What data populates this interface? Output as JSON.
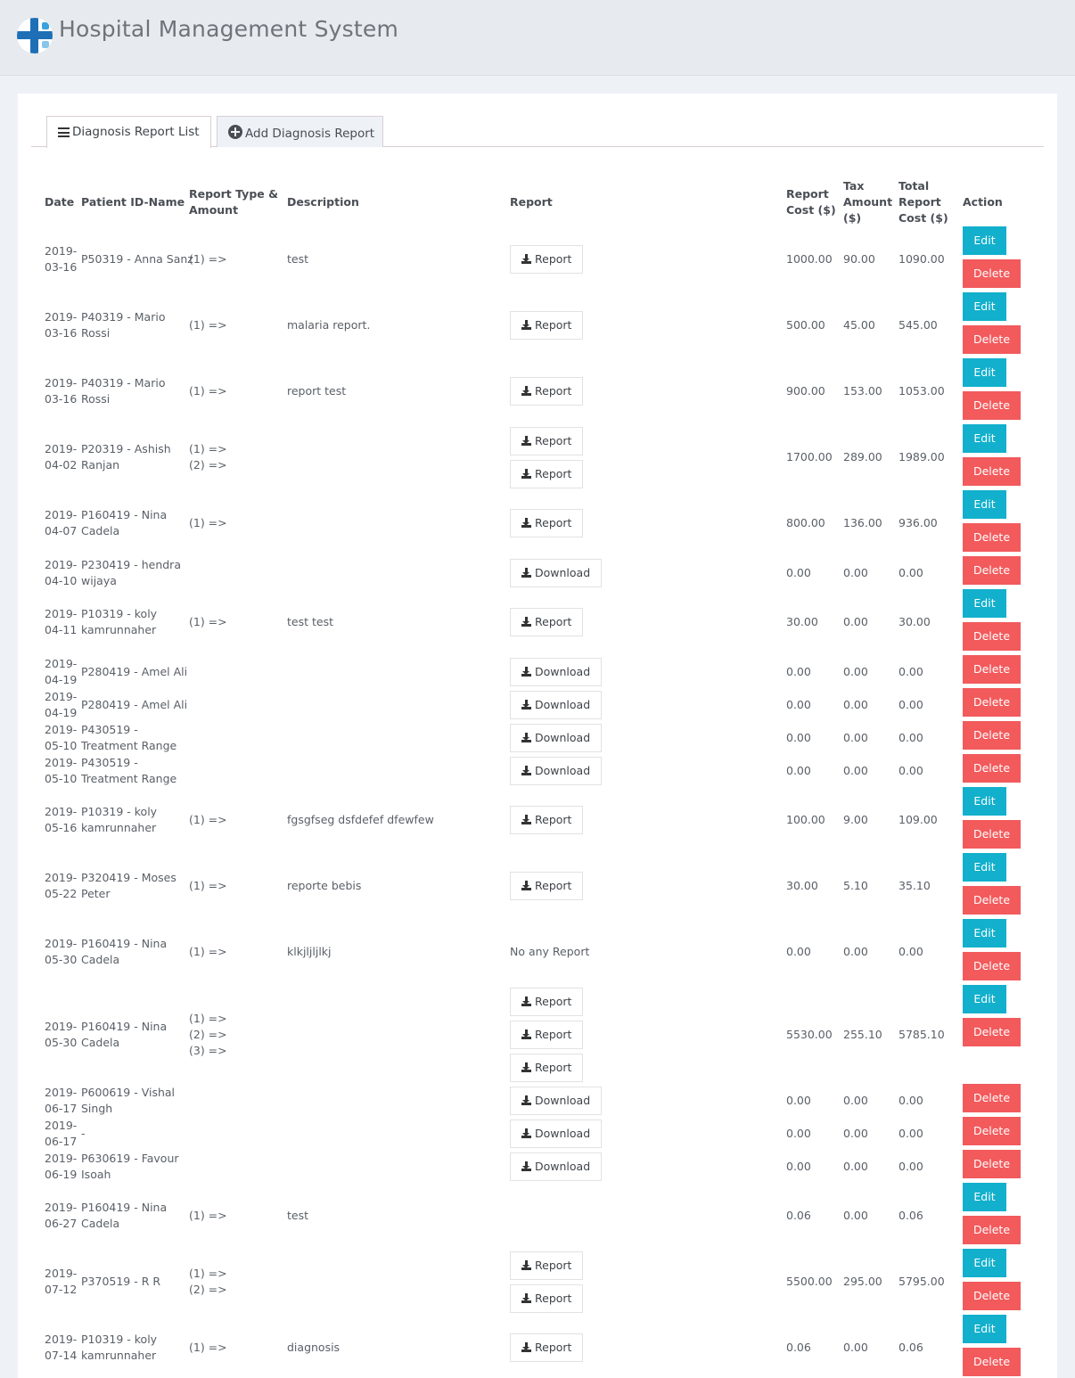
{
  "app": {
    "title": "Hospital Management System",
    "logo_icon": "hospital-cross-icon"
  },
  "tabs": [
    {
      "label": "Diagnosis Report List",
      "icon": "list-icon",
      "active": true
    },
    {
      "label": "Add Diagnosis Report",
      "icon": "plus-circle-icon",
      "active": false
    }
  ],
  "table": {
    "headers": {
      "date": "Date",
      "patient": "Patient ID-Name",
      "type_line1": "Report Type &",
      "type_line2": "Amount",
      "description": "Description",
      "report": "Report",
      "cost_line1": "Report",
      "cost_line2": "Cost ($)",
      "tax_line1": "Tax",
      "tax_line2": "Amount",
      "tax_line3": "($)",
      "total_line1": "Total",
      "total_line2": "Report",
      "total_line3": "Cost ($)",
      "action": "Action"
    },
    "button_labels": {
      "report": "Report",
      "download": "Download",
      "edit": "Edit",
      "delete": "Delete",
      "no_report": "No any Report"
    },
    "rows": [
      {
        "date1": "2019-",
        "date2": "03-16",
        "patient1": "P50319 - Anna Sanz",
        "patient2": "",
        "types": [
          "(1) =>"
        ],
        "description": "test",
        "reports": [
          "Report"
        ],
        "cost": "1000.00",
        "tax": "90.00",
        "total": "1090.00",
        "edit": true
      },
      {
        "date1": "2019-",
        "date2": "03-16",
        "patient1": "P40319 - Mario",
        "patient2": "Rossi",
        "types": [
          "(1) =>"
        ],
        "description": "malaria report.",
        "reports": [
          "Report"
        ],
        "cost": "500.00",
        "tax": "45.00",
        "total": "545.00",
        "edit": true
      },
      {
        "date1": "2019-",
        "date2": "03-16",
        "patient1": "P40319 - Mario",
        "patient2": "Rossi",
        "types": [
          "(1) =>"
        ],
        "description": "report test",
        "reports": [
          "Report"
        ],
        "cost": "900.00",
        "tax": "153.00",
        "total": "1053.00",
        "edit": true
      },
      {
        "date1": "2019-",
        "date2": "04-02",
        "patient1": "P20319 - Ashish",
        "patient2": "Ranjan",
        "types": [
          "(1) =>",
          "(2) =>"
        ],
        "description": "",
        "reports": [
          "Report",
          "Report"
        ],
        "cost": "1700.00",
        "tax": "289.00",
        "total": "1989.00",
        "edit": true
      },
      {
        "date1": "2019-",
        "date2": "04-07",
        "patient1": "P160419 - Nina",
        "patient2": "Cadela",
        "types": [
          "(1) =>"
        ],
        "description": "",
        "reports": [
          "Report"
        ],
        "cost": "800.00",
        "tax": "136.00",
        "total": "936.00",
        "edit": true
      },
      {
        "date1": "2019-",
        "date2": "04-10",
        "patient1": "P230419 - hendra",
        "patient2": "wijaya",
        "types": [],
        "description": "",
        "reports": [
          "Download"
        ],
        "cost": "0.00",
        "tax": "0.00",
        "total": "0.00",
        "edit": false
      },
      {
        "date1": "2019-",
        "date2": "04-11",
        "patient1": "P10319 - koly",
        "patient2": "kamrunnaher",
        "types": [
          "(1) =>"
        ],
        "description": "test test",
        "reports": [
          "Report"
        ],
        "cost": "30.00",
        "tax": "0.00",
        "total": "30.00",
        "edit": true
      },
      {
        "date1": "2019-",
        "date2": "04-19",
        "patient1": "P280419 - Amel Ali",
        "patient2": "",
        "types": [],
        "description": "",
        "reports": [
          "Download"
        ],
        "cost": "0.00",
        "tax": "0.00",
        "total": "0.00",
        "edit": false
      },
      {
        "date1": "2019-",
        "date2": "04-19",
        "patient1": "P280419 - Amel Ali",
        "patient2": "",
        "types": [],
        "description": "",
        "reports": [
          "Download"
        ],
        "cost": "0.00",
        "tax": "0.00",
        "total": "0.00",
        "edit": false
      },
      {
        "date1": "2019-",
        "date2": "05-10",
        "patient1": "P430519 -",
        "patient2": "Treatment Range",
        "types": [],
        "description": "",
        "reports": [
          "Download"
        ],
        "cost": "0.00",
        "tax": "0.00",
        "total": "0.00",
        "edit": false
      },
      {
        "date1": "2019-",
        "date2": "05-10",
        "patient1": "P430519 -",
        "patient2": "Treatment Range",
        "types": [],
        "description": "",
        "reports": [
          "Download"
        ],
        "cost": "0.00",
        "tax": "0.00",
        "total": "0.00",
        "edit": false
      },
      {
        "date1": "2019-",
        "date2": "05-16",
        "patient1": "P10319 - koly",
        "patient2": "kamrunnaher",
        "types": [
          "(1) =>"
        ],
        "description": "fgsgfseg dsfdefef dfewfew",
        "reports": [
          "Report"
        ],
        "cost": "100.00",
        "tax": "9.00",
        "total": "109.00",
        "edit": true
      },
      {
        "date1": "2019-",
        "date2": "05-22",
        "patient1": "P320419 - Moses",
        "patient2": "Peter",
        "types": [
          "(1) =>"
        ],
        "description": "reporte bebis",
        "reports": [
          "Report"
        ],
        "cost": "30.00",
        "tax": "5.10",
        "total": "35.10",
        "edit": true
      },
      {
        "date1": "2019-",
        "date2": "05-30",
        "patient1": "P160419 - Nina",
        "patient2": "Cadela",
        "types": [
          "(1) =>"
        ],
        "description": "klkjljljlkj",
        "reports": [],
        "no_report": true,
        "cost": "0.00",
        "tax": "0.00",
        "total": "0.00",
        "edit": true
      },
      {
        "date1": "2019-",
        "date2": "05-30",
        "patient1": "P160419 - Nina",
        "patient2": "Cadela",
        "types": [
          "(1) =>",
          "(2) =>",
          "(3) =>"
        ],
        "description": "",
        "reports": [
          "Report",
          "Report",
          "Report"
        ],
        "cost": "5530.00",
        "tax": "255.10",
        "total": "5785.10",
        "edit": true
      },
      {
        "date1": "2019-",
        "date2": "06-17",
        "patient1": "P600619 - Vishal",
        "patient2": "Singh",
        "types": [],
        "description": "",
        "reports": [
          "Download"
        ],
        "cost": "0.00",
        "tax": "0.00",
        "total": "0.00",
        "edit": false
      },
      {
        "date1": "2019-",
        "date2": "06-17",
        "patient1": "-",
        "patient2": "",
        "types": [],
        "description": "",
        "reports": [
          "Download"
        ],
        "cost": "0.00",
        "tax": "0.00",
        "total": "0.00",
        "edit": false
      },
      {
        "date1": "2019-",
        "date2": "06-19",
        "patient1": "P630619 - Favour",
        "patient2": "Isoah",
        "types": [],
        "description": "",
        "reports": [
          "Download"
        ],
        "cost": "0.00",
        "tax": "0.00",
        "total": "0.00",
        "edit": false
      },
      {
        "date1": "2019-",
        "date2": "06-27",
        "patient1": "P160419 - Nina",
        "patient2": "Cadela",
        "types": [
          "(1) =>"
        ],
        "description": "test",
        "reports": [],
        "cost": "0.06",
        "tax": "0.00",
        "total": "0.06",
        "edit": true
      },
      {
        "date1": "2019-",
        "date2": "07-12",
        "patient1": "P370519 - R R",
        "patient2": "",
        "types": [
          "(1) =>",
          "(2) =>"
        ],
        "description": "",
        "reports": [
          "Report",
          "Report"
        ],
        "cost": "5500.00",
        "tax": "295.00",
        "total": "5795.00",
        "edit": true
      },
      {
        "date1": "2019-",
        "date2": "07-14",
        "patient1": "P10319 - koly",
        "patient2": "kamrunnaher",
        "types": [
          "(1) =>"
        ],
        "description": "diagnosis",
        "reports": [
          "Report"
        ],
        "cost": "0.06",
        "tax": "0.00",
        "total": "0.06",
        "edit": true
      }
    ]
  },
  "colors": {
    "edit": "#12b0cc",
    "delete": "#f25a5c",
    "brand_blue": "#1f6fb7"
  }
}
